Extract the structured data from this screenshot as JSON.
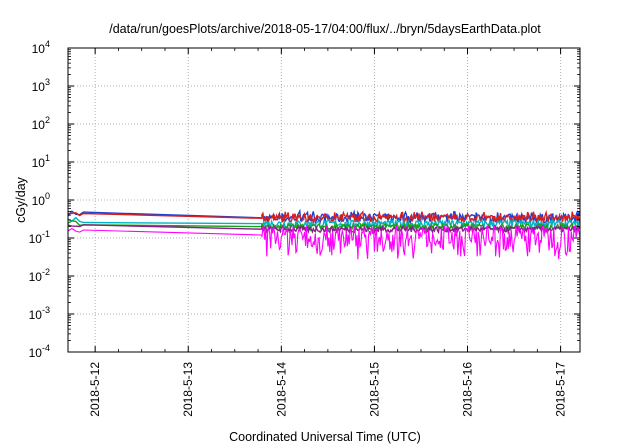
{
  "chart_data": {
    "type": "line",
    "title": "/data/run/goesPlots/archive/2018-05-17/04:00/flux/../bryn/5daysEarthData.plot",
    "xlabel": "Coordinated Universal Time (UTC)",
    "ylabel": "cGy/day",
    "y_scale": "log",
    "ylim": [
      0.0001,
      10000
    ],
    "y_ticks": [
      {
        "base": "10",
        "exp": "-4"
      },
      {
        "base": "10",
        "exp": "-3"
      },
      {
        "base": "10",
        "exp": "-2"
      },
      {
        "base": "10",
        "exp": "-1"
      },
      {
        "base": "10",
        "exp": "0"
      },
      {
        "base": "10",
        "exp": "1"
      },
      {
        "base": "10",
        "exp": "2"
      },
      {
        "base": "10",
        "exp": "3"
      },
      {
        "base": "10",
        "exp": "4"
      }
    ],
    "xlim": [
      "2018-05-11 17:00",
      "2018-05-17 05:00"
    ],
    "x_ticks": [
      "2018-5-12",
      "2018-5-13",
      "2018-5-14",
      "2018-5-15",
      "2018-5-16",
      "2018-5-17"
    ],
    "grid": true,
    "gap": [
      "2018-05-11 21:00",
      "2018-05-13 19:00"
    ],
    "series": [
      {
        "color": "#1f3fd6",
        "values_start": 0.45,
        "values_after_gap": 0.34,
        "variation": 0.12
      },
      {
        "color": "#d62020",
        "values_start": 0.42,
        "values_after_gap": 0.33,
        "variation": 0.1
      },
      {
        "color": "#00b4c8",
        "values_start": 0.3,
        "values_after_gap": 0.24,
        "variation": 0.1
      },
      {
        "color": "#18a018",
        "values_start": 0.25,
        "values_after_gap": 0.2,
        "variation": 0.08
      },
      {
        "color": "#8a1e8a",
        "values_start": 0.2,
        "values_after_gap": 0.17,
        "variation": 0.08
      },
      {
        "color": "#ff00ff",
        "values_start": 0.16,
        "values_after_gap": 0.12,
        "variation": 0.35
      }
    ]
  }
}
